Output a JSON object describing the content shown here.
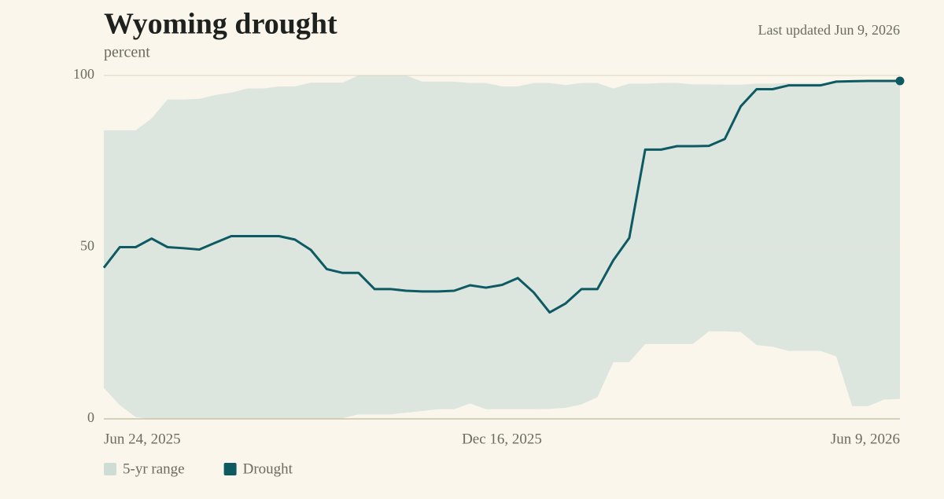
{
  "chart_data": {
    "type": "line",
    "title": "Wyoming drought",
    "subtitle": "percent",
    "updated": "Last updated Jun 9, 2026",
    "x": [
      "2025-06-24",
      "2025-07-01",
      "2025-07-08",
      "2025-07-15",
      "2025-07-22",
      "2025-07-29",
      "2025-08-05",
      "2025-08-12",
      "2025-08-19",
      "2025-08-26",
      "2025-09-02",
      "2025-09-09",
      "2025-09-16",
      "2025-09-23",
      "2025-09-30",
      "2025-10-07",
      "2025-10-14",
      "2025-10-21",
      "2025-10-28",
      "2025-11-04",
      "2025-11-11",
      "2025-11-18",
      "2025-11-25",
      "2025-12-02",
      "2025-12-09",
      "2025-12-16",
      "2025-12-23",
      "2025-12-30",
      "2026-01-06",
      "2026-01-13",
      "2026-01-20",
      "2026-01-27",
      "2026-02-03",
      "2026-02-10",
      "2026-02-17",
      "2026-02-24",
      "2026-03-03",
      "2026-03-10",
      "2026-03-17",
      "2026-03-24",
      "2026-03-31",
      "2026-04-07",
      "2026-04-14",
      "2026-04-21",
      "2026-04-28",
      "2026-05-05",
      "2026-05-12",
      "2026-05-19",
      "2026-05-26",
      "2026-06-02",
      "2026-06-09"
    ],
    "xticks": [
      {
        "value": "2025-06-24",
        "label": "Jun 24, 2025"
      },
      {
        "value": "2025-12-16",
        "label": "Dec 16, 2025"
      },
      {
        "value": "2026-06-09",
        "label": "Jun 9, 2026"
      }
    ],
    "ylim": [
      0,
      100
    ],
    "yticks": [
      0,
      50,
      100
    ],
    "grid": true,
    "series": [
      {
        "name": "5-yr range",
        "color": "#dce6df",
        "upper": [
          84,
          84,
          84,
          87.5,
          93,
          93,
          93.2,
          94.3,
          95,
          96.2,
          96.2,
          96.8,
          96.8,
          97.9,
          97.9,
          97.9,
          100,
          100,
          100,
          100,
          98.2,
          98.2,
          98.2,
          97.8,
          97.8,
          96.8,
          96.8,
          97.8,
          97.8,
          97.2,
          97.8,
          97.8,
          96.2,
          97.6,
          97.6,
          97.8,
          97.8,
          97.4,
          97.4,
          97.3,
          97.3,
          97.6,
          97.6,
          97.8,
          97.8,
          97.8,
          98,
          98.2,
          98.2,
          98.2,
          98.2
        ],
        "lower": [
          9,
          4,
          0.5,
          0,
          0,
          0,
          0,
          0,
          0,
          0,
          0,
          0,
          0,
          0,
          0,
          0.2,
          1.3,
          1.3,
          1.3,
          1.8,
          2.3,
          2.8,
          2.8,
          4.5,
          2.8,
          2.8,
          2.8,
          2.8,
          2.9,
          3.2,
          4.2,
          6.3,
          16.5,
          16.5,
          21.8,
          21.8,
          21.8,
          21.8,
          25.5,
          25.5,
          25.3,
          21.5,
          21,
          19.8,
          19.8,
          19.8,
          18.2,
          3.7,
          3.7,
          5.6,
          5.8
        ]
      },
      {
        "name": "Drought",
        "color": "#0e5a63",
        "values": [
          44,
          50,
          50,
          52.5,
          50,
          49.7,
          49.3,
          51.3,
          53.2,
          53.2,
          53.2,
          53.2,
          52.2,
          49.2,
          43.6,
          42.5,
          42.5,
          37.8,
          37.8,
          37.3,
          37.1,
          37.1,
          37.3,
          38.9,
          38.2,
          39,
          41,
          36.8,
          31,
          33.6,
          37.8,
          37.8,
          46.2,
          52.7,
          78.4,
          78.4,
          79.4,
          79.4,
          79.5,
          81.5,
          91,
          96,
          96,
          97.1,
          97.1,
          97.1,
          98.2,
          98.3,
          98.4,
          98.4,
          98.4
        ]
      }
    ]
  }
}
